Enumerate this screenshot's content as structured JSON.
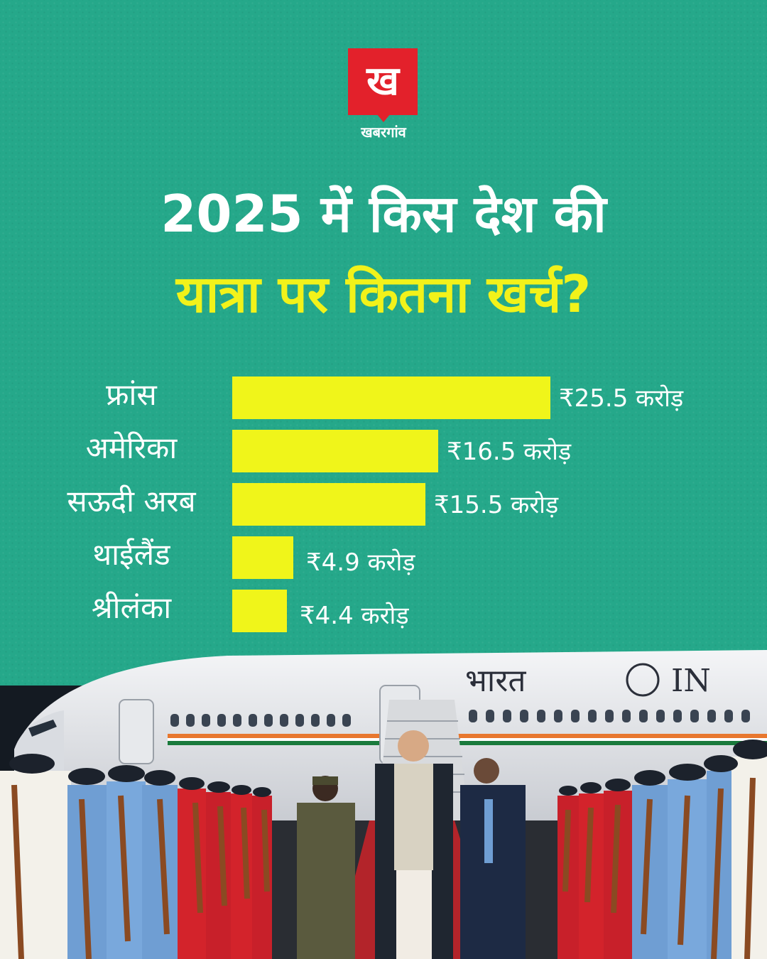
{
  "brand": {
    "logo_glyph": "ख",
    "name": "खबरगांव",
    "color": "#e3212b"
  },
  "headline": {
    "line1": "2025 में किस देश की",
    "line2": "यात्रा पर कितना खर्च?"
  },
  "colors": {
    "background": "#25a88a",
    "bar": "#f0f51a",
    "headline_highlight": "#f2f21a"
  },
  "chart_data": {
    "type": "bar",
    "orientation": "horizontal",
    "categories": [
      "फ्रांस",
      "अमेरिका",
      "सऊदी अरब",
      "थाईलैंड",
      "श्रीलंका"
    ],
    "values": [
      25.5,
      16.5,
      15.5,
      4.9,
      4.4
    ],
    "value_labels": [
      "₹25.5 करोड़",
      "₹16.5 करोड़",
      "₹15.5 करोड़",
      "₹4.9 करोड़",
      "₹4.4 करोड़"
    ],
    "title": "",
    "xlabel": "",
    "ylabel": "",
    "grid": false,
    "legend": "none"
  },
  "photo": {
    "aircraft_text": "भारत",
    "aircraft_text_partial": "IN"
  }
}
